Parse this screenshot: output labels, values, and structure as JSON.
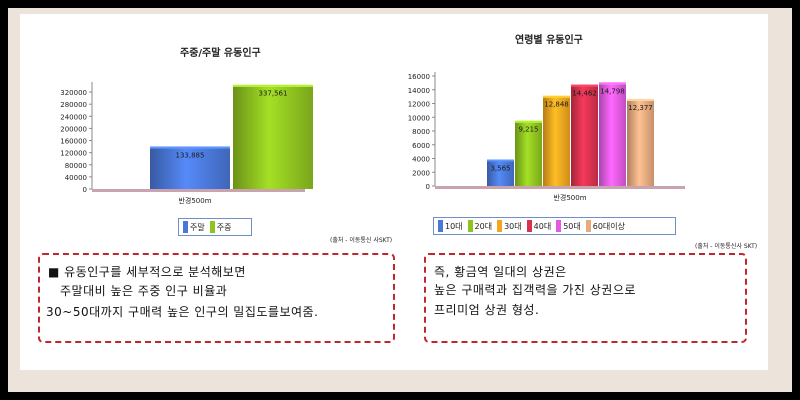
{
  "chart_data": [
    {
      "type": "bar",
      "title": "주중/주말 유동인구",
      "categories": [
        "반경500m"
      ],
      "series": [
        {
          "name": "주말",
          "values": [
            133885
          ],
          "color": "#4a78d8",
          "label": "133,885"
        },
        {
          "name": "주중",
          "values": [
            337561
          ],
          "color": "#8fc320",
          "label": "337,561"
        }
      ],
      "yticks": [
        "0",
        "40000",
        "80000",
        "120000",
        "160000",
        "200000",
        "240000",
        "280000",
        "320000"
      ],
      "ylim": [
        0,
        340000
      ],
      "xlabel": "반경500m",
      "source": "(출처 - 이동통신 사SKT)",
      "grid": false,
      "legend": "bottom-left"
    },
    {
      "type": "bar",
      "title": "연령별 유동인구",
      "categories": [
        "반경500m"
      ],
      "series": [
        {
          "name": "10대",
          "values": [
            3565
          ],
          "color": "#4a78d8",
          "label": "3,565"
        },
        {
          "name": "20대",
          "values": [
            9215
          ],
          "color": "#8fc320",
          "label": "9,215"
        },
        {
          "name": "30대",
          "values": [
            12848
          ],
          "color": "#f3a51f",
          "label": "12,848"
        },
        {
          "name": "40대",
          "values": [
            14462
          ],
          "color": "#d8324f",
          "label": "14,462"
        },
        {
          "name": "50대",
          "values": [
            14798
          ],
          "color": "#e35be3",
          "label": "14,798"
        },
        {
          "name": "60대이상",
          "values": [
            12377
          ],
          "color": "#e9a97f",
          "label": "12,377"
        }
      ],
      "yticks": [
        "0",
        "2000",
        "4000",
        "6000",
        "8000",
        "10000",
        "12000",
        "14000",
        "16000"
      ],
      "ylim": [
        0,
        16000
      ],
      "xlabel": "반경500m",
      "source": "(출처 - 이동통신사 SKT)",
      "grid": false,
      "legend": "bottom-left"
    }
  ],
  "notes": {
    "left": {
      "line1": "■ 유동인구를 세부적으로 분석해보면",
      "line2": "주말대비 높은 주중 인구 비율과",
      "line3": "30~50대까지 구매력 높은 인구의 밀집도를보여줌."
    },
    "right": {
      "line1": "즉, 황금역 일대의 상권은",
      "line2": "높은 구매력과 집객력을 가진 상권으로",
      "line3": "프리미엄 상권 형성."
    }
  },
  "colors": {
    "frame": "#ece3da",
    "note_border": "#c0272d",
    "legend_border": "#6f8fc8",
    "baseline": "#c9a3ad"
  }
}
